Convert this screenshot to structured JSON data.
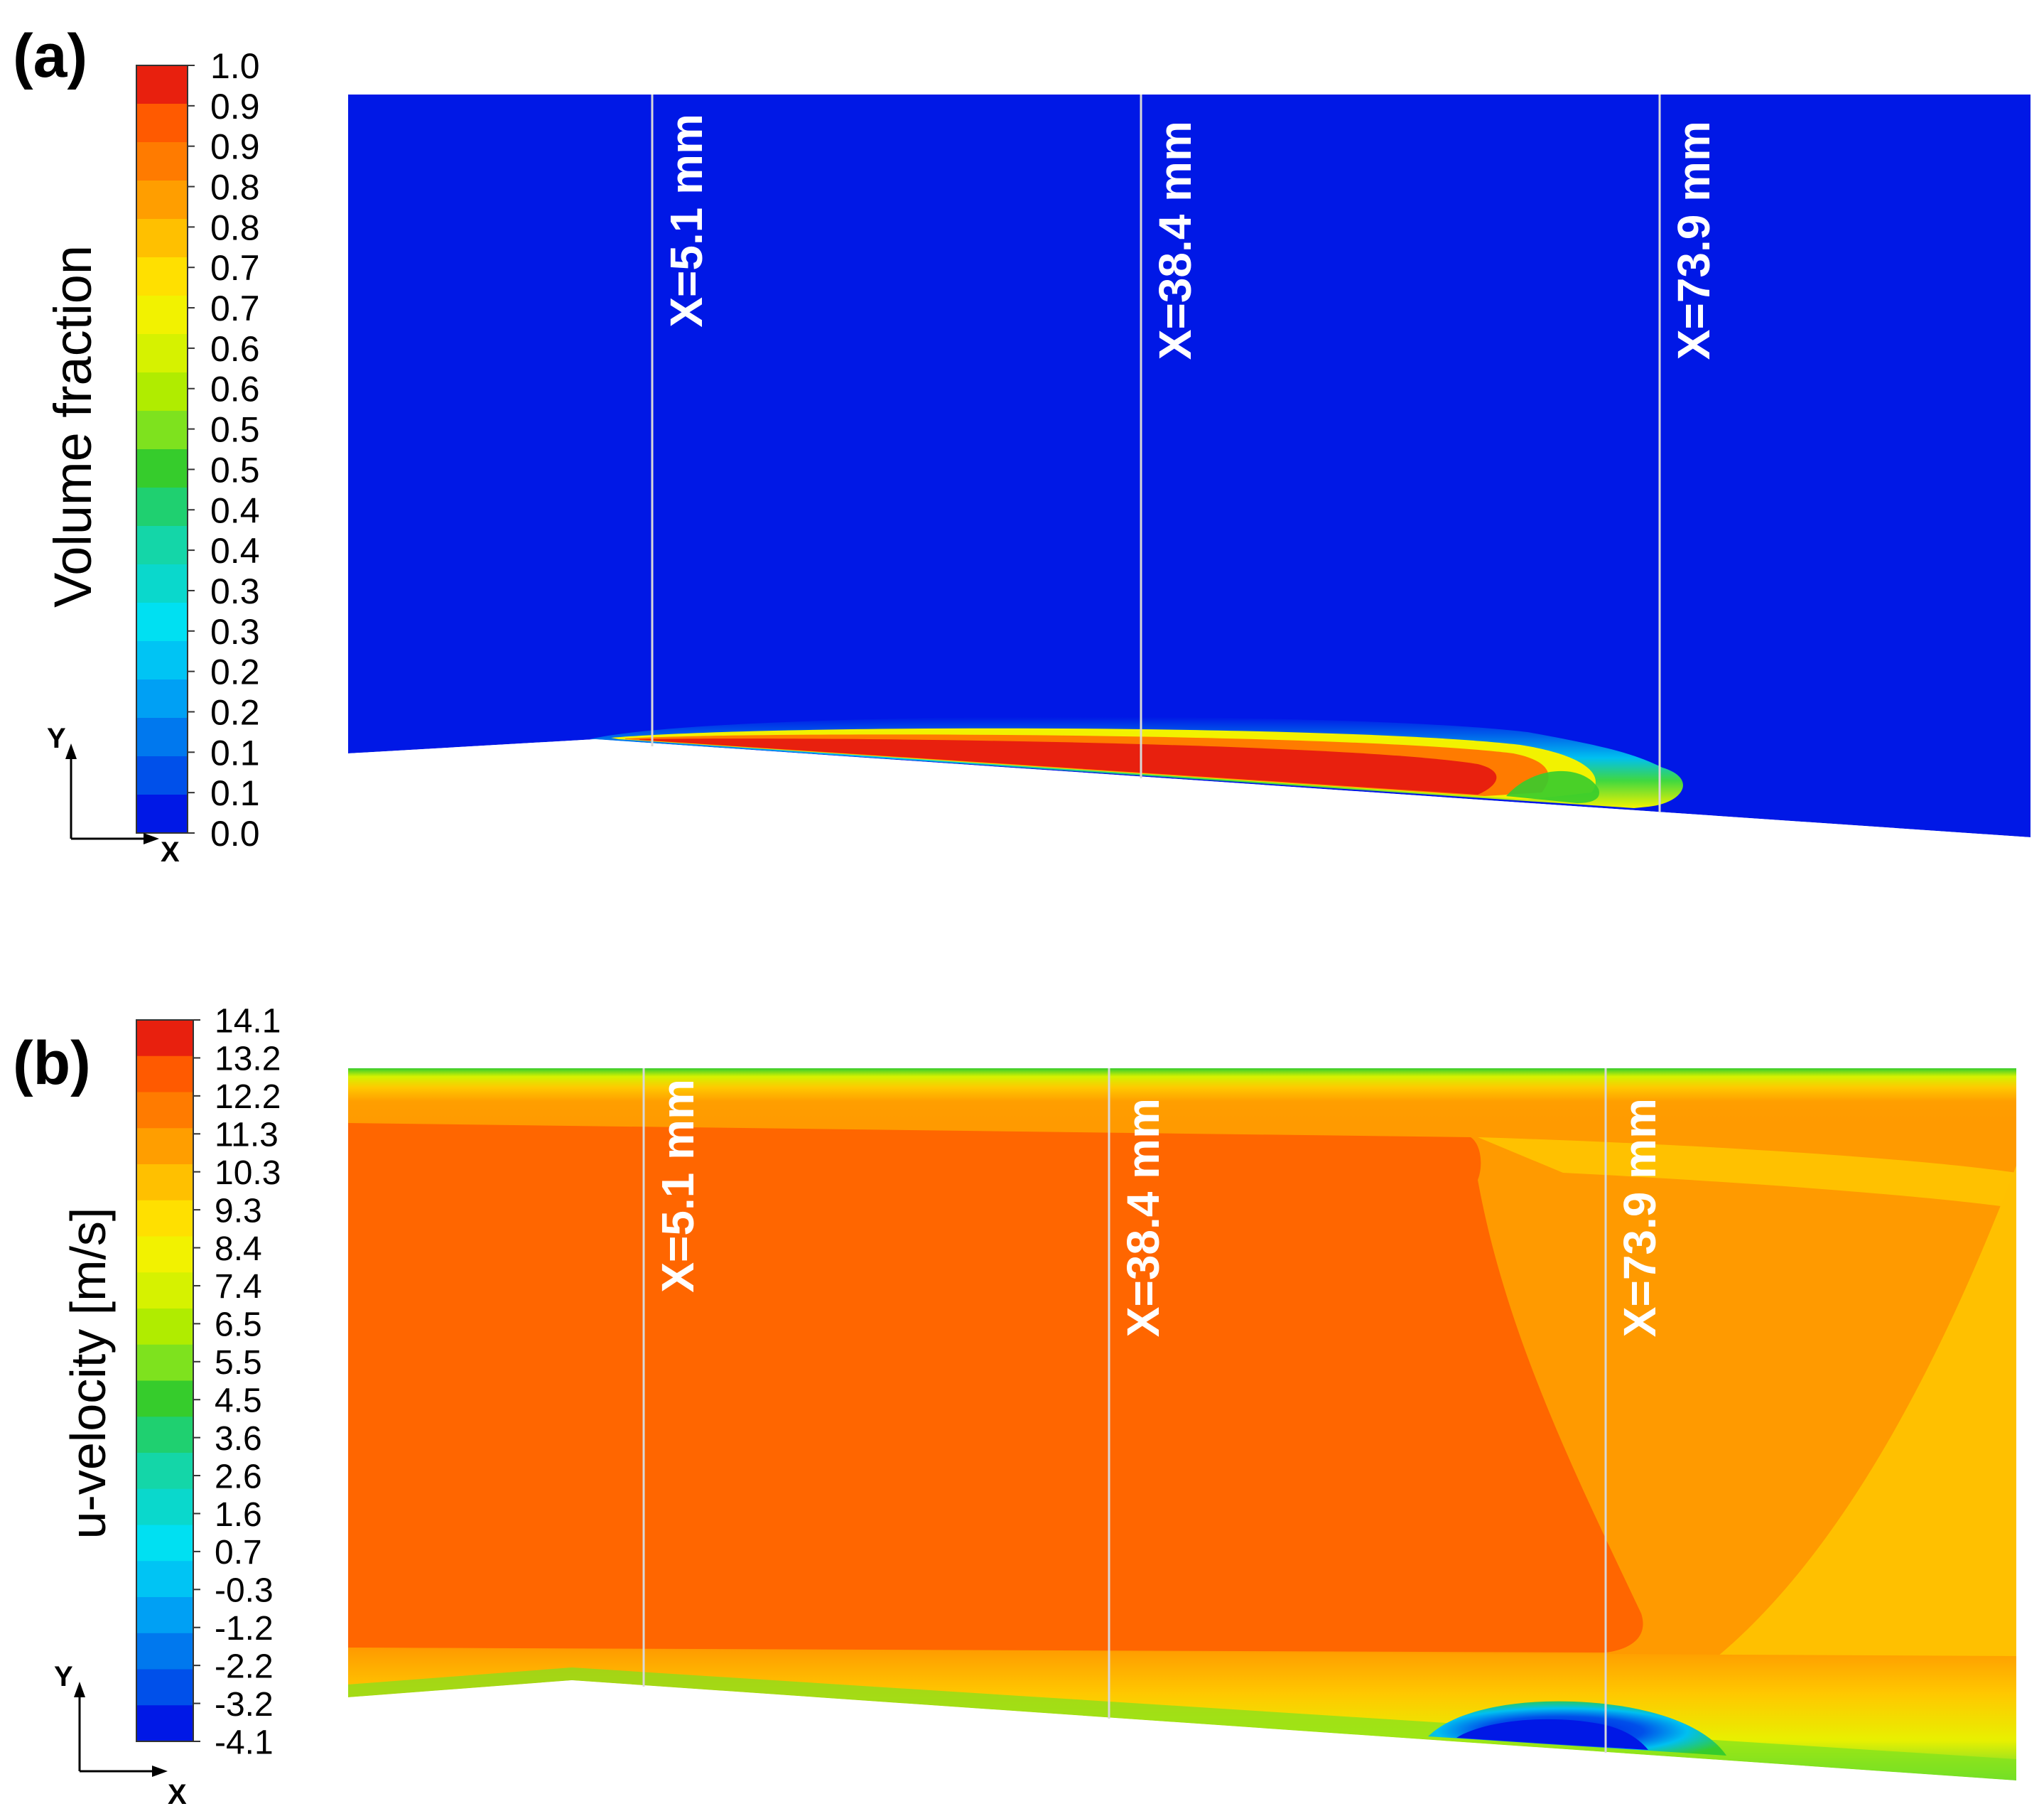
{
  "chart_data": [
    {
      "type": "heatmap",
      "panel_label": "(a)",
      "colorbar": {
        "title": "Volume fraction",
        "tick_labels": [
          "1.0",
          "0.9",
          "0.9",
          "0.8",
          "0.8",
          "0.7",
          "0.7",
          "0.6",
          "0.6",
          "0.5",
          "0.5",
          "0.4",
          "0.4",
          "0.3",
          "0.3",
          "0.2",
          "0.2",
          "0.1",
          "0.1",
          "0.0"
        ],
        "range": [
          0.0,
          1.0
        ]
      },
      "axes_triad": {
        "x": "X",
        "y": "Y"
      },
      "sections": [
        {
          "label": "X=5.1 mm",
          "x_mm": 5.1
        },
        {
          "label": "X=38.4 mm",
          "x_mm": 38.4
        },
        {
          "label": "X=73.9 mm",
          "x_mm": 73.9
        }
      ],
      "field_description_values": {
        "background": 0.0,
        "bubble_core": 1.0
      }
    },
    {
      "type": "heatmap",
      "panel_label": "(b)",
      "colorbar": {
        "title": "u-velocity [m/s]",
        "tick_labels": [
          "14.1",
          "13.2",
          "12.2",
          "11.3",
          "10.3",
          "9.3",
          "8.4",
          "7.4",
          "6.5",
          "5.5",
          "4.5",
          "3.6",
          "2.6",
          "1.6",
          "0.7",
          "-0.3",
          "-1.2",
          "-2.2",
          "-3.2",
          "-4.1"
        ],
        "range": [
          -4.1,
          14.1
        ]
      },
      "axes_triad": {
        "x": "X",
        "y": "Y"
      },
      "sections": [
        {
          "label": "X=5.1 mm",
          "x_mm": 5.1
        },
        {
          "label": "X=38.4 mm",
          "x_mm": 38.4
        },
        {
          "label": "X=73.9 mm",
          "x_mm": 73.9
        }
      ]
    }
  ],
  "colors": {
    "band_colors": [
      "#e8200e",
      "#ff5a00",
      "#ff7b00",
      "#ff9e00",
      "#ffc000",
      "#ffe000",
      "#f2f200",
      "#d6f200",
      "#b0ec00",
      "#7ee21e",
      "#36cc2c",
      "#1fd070",
      "#14d6a8",
      "#0ad8cc",
      "#00e0f2",
      "#00c4f4",
      "#00a0f4",
      "#0078ee",
      "#0050ea",
      "#0018e6"
    ],
    "panel_a_background": "#0018e6",
    "panel_b_core": "#ff6600",
    "panel_b_outer": "#ff9a00",
    "panel_b_top_layer": "#ffc800"
  }
}
